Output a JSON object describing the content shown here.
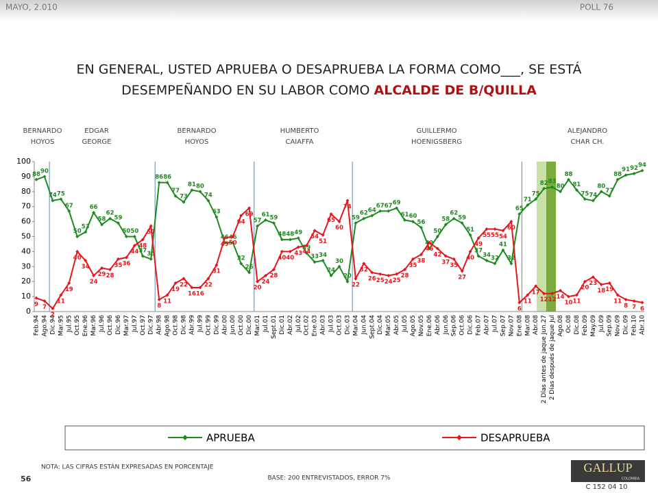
{
  "header": {
    "date": "MAYO, 2.010",
    "poll": "POLL 76",
    "title_line1": "EN GENERAL, USTED APRUEBA O DESAPRUEBA LA FORMA COMO___, SE ESTÁ",
    "title_line2": "DESEMPEÑANDO EN SU LABOR COMO ",
    "title_highlight": "ALCALDE DE B/QUILLA"
  },
  "chart_data": {
    "type": "line",
    "categories": [
      "Feb.94",
      "Ago.94",
      "Dic.94",
      "Mar.95",
      "Jul.95",
      "Oct.95",
      "Ene.96",
      "Mar.96",
      "Jul.96",
      "Oct.96",
      "Dic.96",
      "Mar.97",
      "Jul.97",
      "Oct.97",
      "Dic.97",
      "Abr.98",
      "Ago.98",
      "Oct.98",
      "Dic.98",
      "Abr.99",
      "Jul.99",
      "Oct.99",
      "Dic.99",
      "Abr.00",
      "Jun.00",
      "Oct.00",
      "Dic.00",
      "Mar.01",
      "Jul.01",
      "Sept.01",
      "Dic.01",
      "Abr.02",
      "Jul.02",
      "Oct.02",
      "Ene.03",
      "Abr.03",
      "Jul.03",
      "Oct.03",
      "Dic.03",
      "Mar.04",
      "Jun.04",
      "Sept.04",
      "Dic.04",
      "Mar.05",
      "Abr.05",
      "Jul.05",
      "Ago.05",
      "Nov.05",
      "Ene.06",
      "Abr.06",
      "Jun.06",
      "Sep.06",
      "Oct.06",
      "Dic.06",
      "Feb.07",
      "Abr.07",
      "Jul.07",
      "Sep.07",
      "Nov.07",
      "Ene.08",
      "Mar.08",
      "Abr.08",
      "2 Días antes de jaque Jun.27",
      "2 Días después de jaque Jul",
      "Ago.08",
      "Oc.08",
      "Dic.08",
      "Feb.09",
      "May.09",
      "Jul.09",
      "Sep.09",
      "Nov.09",
      "Dic.09",
      "Feb.10",
      "Abr.10"
    ],
    "series": [
      {
        "name": "APRUEBA",
        "color": "#1e8a1e",
        "values": [
          88,
          90,
          74,
          75,
          67,
          50,
          53,
          66,
          58,
          62,
          59,
          50,
          50,
          37,
          35,
          86,
          86,
          77,
          73,
          81,
          80,
          74,
          63,
          46,
          46,
          32,
          26,
          57,
          61,
          59,
          48,
          48,
          49,
          39,
          33,
          34,
          24,
          30,
          20,
          59,
          62,
          64,
          67,
          67,
          69,
          61,
          60,
          56,
          42,
          50,
          58,
          62,
          59,
          51,
          37,
          34,
          32,
          41,
          32,
          65,
          71,
          75,
          82,
          83,
          80,
          88,
          81,
          75,
          74,
          80,
          77,
          88,
          91,
          92,
          94
        ]
      },
      {
        "name": "DESAPRUEBA",
        "color": "#e8141a",
        "values": [
          9,
          7,
          2,
          11,
          19,
          40,
          34,
          24,
          29,
          28,
          35,
          36,
          44,
          48,
          57,
          8,
          11,
          19,
          22,
          16,
          16,
          22,
          31,
          49,
          50,
          64,
          69,
          20,
          24,
          28,
          40,
          40,
          43,
          44,
          54,
          51,
          65,
          60,
          74,
          22,
          32,
          26,
          25,
          24,
          25,
          28,
          35,
          38,
          46,
          42,
          37,
          35,
          27,
          40,
          49,
          55,
          55,
          54,
          60,
          6,
          11,
          17,
          12,
          12,
          14,
          10,
          11,
          20,
          23,
          18,
          19,
          11,
          8,
          7,
          6
        ]
      }
    ],
    "ylim": [
      0,
      100
    ],
    "yticks": [
      0,
      10,
      20,
      30,
      40,
      50,
      60,
      70,
      80,
      90,
      100
    ],
    "grid": false,
    "annotations": [
      [
        "BERNARDO",
        "HOYOS"
      ],
      [
        "EDGAR",
        "GEORGE"
      ],
      [
        "BERNARDO",
        "HOYOS"
      ],
      [
        "HUMBERTO",
        "CAIAFFA"
      ],
      [
        "GUILLERMO",
        "HOENIGSBERG"
      ],
      [
        "ALEJANDRO",
        "CHAR CH."
      ]
    ]
  },
  "footer": {
    "note": "NOTA: LAS CIFRAS ESTÁN EXPRESADAS EN PORCENTAJE",
    "page": "56",
    "base": "BASE: 200 ENTREVISTADOS, ERROR 7%",
    "logo": "GALLUP",
    "logo_sub": "COLOMBIA",
    "code": "C 152 04 10"
  }
}
